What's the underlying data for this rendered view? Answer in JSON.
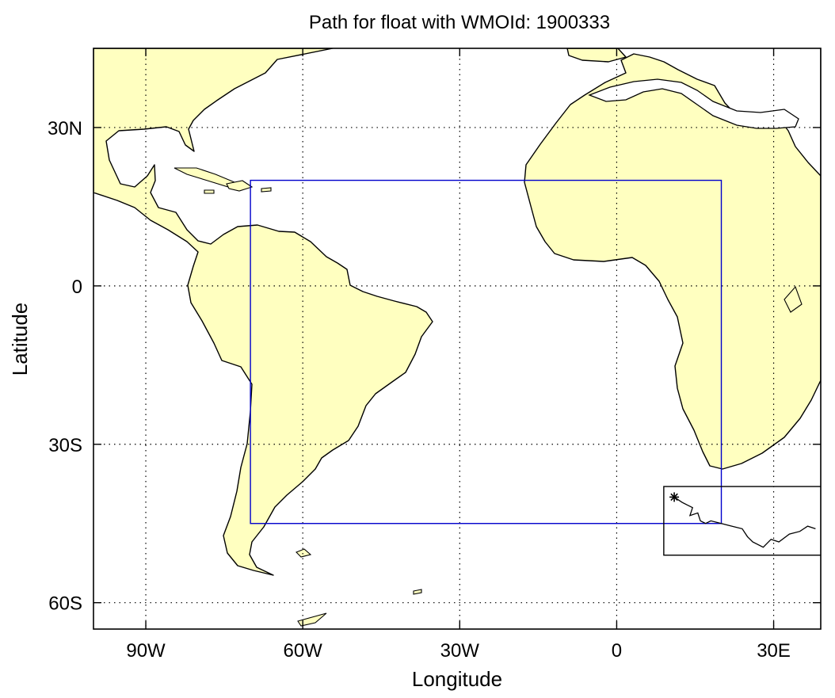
{
  "title": "Path for float with WMOId: 1900333",
  "x_axis": {
    "label": "Longitude",
    "ticks": [
      {
        "value": -90,
        "label": "90W"
      },
      {
        "value": -60,
        "label": "60W"
      },
      {
        "value": -30,
        "label": "30W"
      },
      {
        "value": 0,
        "label": "0"
      },
      {
        "value": 30,
        "label": "30E"
      }
    ],
    "range": [
      -100,
      39
    ]
  },
  "y_axis": {
    "label": "Latitude",
    "ticks": [
      {
        "value": 30,
        "label": "30N"
      },
      {
        "value": 0,
        "label": "0"
      },
      {
        "value": -30,
        "label": "30S"
      },
      {
        "value": -60,
        "label": "60S"
      }
    ],
    "range": [
      -65,
      45
    ]
  },
  "grid": "dotted",
  "colors": {
    "land": "#ffffc0",
    "ocean": "#ffffff",
    "region_box": "#0000cc",
    "detail_box": "#000000",
    "coast": "#000000"
  },
  "region_box": {
    "lon_min": -70,
    "lon_max": 20,
    "lat_min": -45,
    "lat_max": 20
  },
  "detail_box": {
    "lon_min": 9,
    "lon_max": 40,
    "lat_min": -51,
    "lat_max": -38
  },
  "float_start": {
    "lon": 11,
    "lat": -40,
    "marker": "asterisk"
  },
  "float_path": [
    [
      11,
      -40
    ],
    [
      12.5,
      -41
    ],
    [
      13.5,
      -41.5
    ],
    [
      14.5,
      -42
    ],
    [
      14,
      -43.5
    ],
    [
      15.5,
      -43
    ],
    [
      16,
      -44.5
    ],
    [
      17,
      -45
    ],
    [
      18,
      -44.5
    ],
    [
      20,
      -45
    ],
    [
      22,
      -45.5
    ],
    [
      24,
      -46
    ],
    [
      25,
      -47.5
    ],
    [
      26,
      -48.5
    ],
    [
      28,
      -49.5
    ],
    [
      29.5,
      -48
    ],
    [
      31,
      -48.5
    ],
    [
      33,
      -47
    ],
    [
      35,
      -46.5
    ],
    [
      36.5,
      -45.5
    ],
    [
      38,
      -46
    ]
  ]
}
